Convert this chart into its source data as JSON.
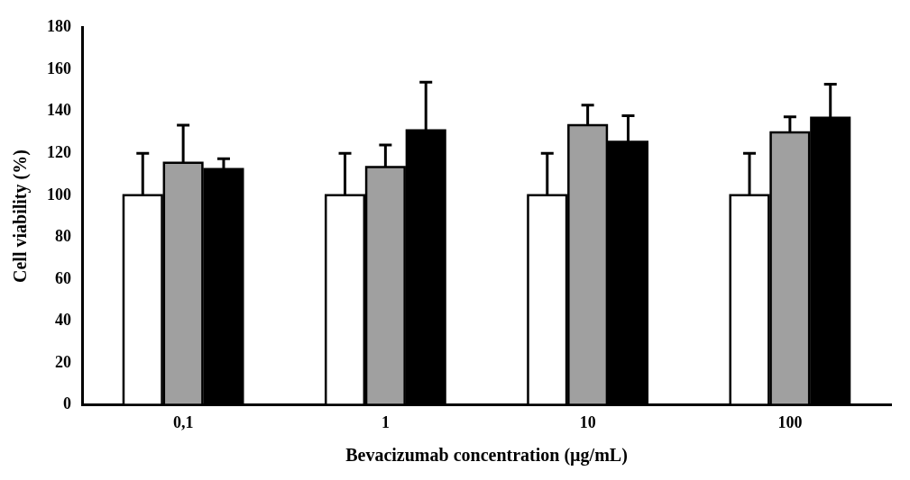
{
  "chart_data": {
    "type": "bar",
    "xlabel": "Bevacizumab concentration (µg/mL)",
    "ylabel": "Cell viability (%)",
    "categories": [
      "0,1",
      "1",
      "10",
      "100"
    ],
    "series": [
      {
        "color": "#ffffff",
        "values": [
          100,
          100,
          100,
          100
        ],
        "errors": [
          20,
          20,
          20,
          20
        ]
      },
      {
        "color": "#a0a0a0",
        "values": [
          115.5,
          113.5,
          133.5,
          130
        ],
        "errors": [
          18,
          10.5,
          9.5,
          7.5
        ]
      },
      {
        "color": "#000000",
        "values": [
          112.5,
          131,
          125.5,
          137
        ],
        "errors": [
          5,
          23,
          12.5,
          16
        ]
      }
    ],
    "ylim": [
      0,
      180
    ],
    "yticks": [
      0,
      20,
      40,
      60,
      80,
      100,
      120,
      140,
      160,
      180
    ],
    "grid": false,
    "legend": false
  }
}
